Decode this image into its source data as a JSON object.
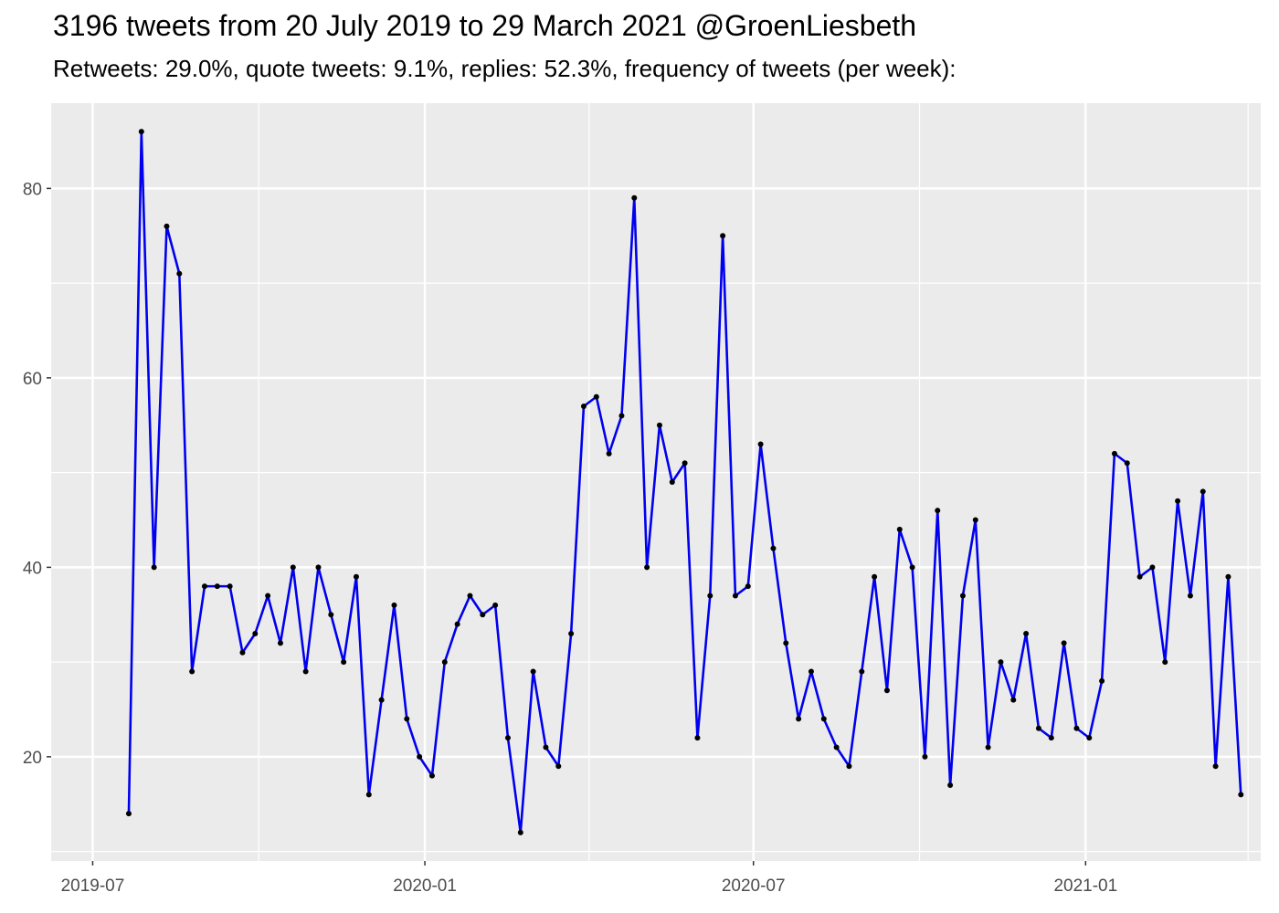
{
  "chart_data": {
    "type": "line",
    "title": "3196 tweets from 20 July 2019 to 29 March 2021 @GroenLiesbeth",
    "subtitle": "Retweets: 29.0%, quote tweets: 9.1%, replies: 52.3%, frequency of tweets (per week):",
    "xlabel": "",
    "ylabel": "",
    "x_range": [
      "2019-06-08",
      "2021-04-08"
    ],
    "ylim": [
      9,
      89
    ],
    "y_ticks": [
      20,
      40,
      60,
      80
    ],
    "x_ticks": [
      {
        "date": "2019-07-01",
        "label": "2019-07"
      },
      {
        "date": "2020-01-01",
        "label": "2020-01"
      },
      {
        "date": "2020-07-01",
        "label": "2020-07"
      },
      {
        "date": "2021-01-01",
        "label": "2021-01"
      }
    ],
    "x_minor_ticks": [
      "2019-10-01",
      "2020-04-01",
      "2020-10-01",
      "2021-04-01"
    ],
    "grid": true,
    "line_color": "#0000EE",
    "point_color": "#000000",
    "panel_color": "#EBEBEB",
    "grid_color": "#FFFFFF",
    "series": [
      {
        "x": [
          "2019-07-21",
          "2019-07-28",
          "2019-08-04",
          "2019-08-11",
          "2019-08-18",
          "2019-08-25",
          "2019-09-01",
          "2019-09-08",
          "2019-09-15",
          "2019-09-22",
          "2019-09-29",
          "2019-10-06",
          "2019-10-13",
          "2019-10-20",
          "2019-10-27",
          "2019-11-03",
          "2019-11-10",
          "2019-11-17",
          "2019-11-24",
          "2019-12-01",
          "2019-12-08",
          "2019-12-15",
          "2019-12-22",
          "2019-12-29",
          "2020-01-05",
          "2020-01-12",
          "2020-01-19",
          "2020-01-26",
          "2020-02-02",
          "2020-02-09",
          "2020-02-16",
          "2020-02-23",
          "2020-03-01",
          "2020-03-08",
          "2020-03-15",
          "2020-03-22",
          "2020-03-29",
          "2020-04-05",
          "2020-04-12",
          "2020-04-19",
          "2020-04-26",
          "2020-05-03",
          "2020-05-10",
          "2020-05-17",
          "2020-05-24",
          "2020-05-31",
          "2020-06-07",
          "2020-06-14",
          "2020-06-21",
          "2020-06-28",
          "2020-07-05",
          "2020-07-12",
          "2020-07-19",
          "2020-07-26",
          "2020-08-02",
          "2020-08-09",
          "2020-08-16",
          "2020-08-23",
          "2020-08-30",
          "2020-09-06",
          "2020-09-13",
          "2020-09-20",
          "2020-09-27",
          "2020-10-04",
          "2020-10-11",
          "2020-10-18",
          "2020-10-25",
          "2020-11-01",
          "2020-11-08",
          "2020-11-15",
          "2020-11-22",
          "2020-11-29",
          "2020-12-06",
          "2020-12-13",
          "2020-12-20",
          "2020-12-27",
          "2021-01-03",
          "2021-01-10",
          "2021-01-17",
          "2021-01-24",
          "2021-01-31",
          "2021-02-07",
          "2021-02-14",
          "2021-02-21",
          "2021-02-28",
          "2021-03-07",
          "2021-03-14",
          "2021-03-21",
          "2021-03-28"
        ],
        "values": [
          14,
          86,
          40,
          76,
          71,
          29,
          38,
          38,
          38,
          31,
          33,
          37,
          32,
          40,
          29,
          40,
          35,
          30,
          39,
          16,
          26,
          36,
          24,
          20,
          18,
          30,
          34,
          37,
          35,
          36,
          22,
          12,
          29,
          21,
          19,
          33,
          57,
          58,
          52,
          56,
          79,
          40,
          55,
          49,
          51,
          22,
          37,
          75,
          37,
          38,
          53,
          42,
          32,
          24,
          29,
          24,
          21,
          19,
          29,
          39,
          27,
          44,
          40,
          20,
          46,
          17,
          37,
          45,
          21,
          30,
          26,
          33,
          23,
          22,
          32,
          23,
          22,
          28,
          52,
          51,
          39,
          40,
          30,
          47,
          37,
          48,
          19,
          39,
          16
        ]
      }
    ]
  }
}
